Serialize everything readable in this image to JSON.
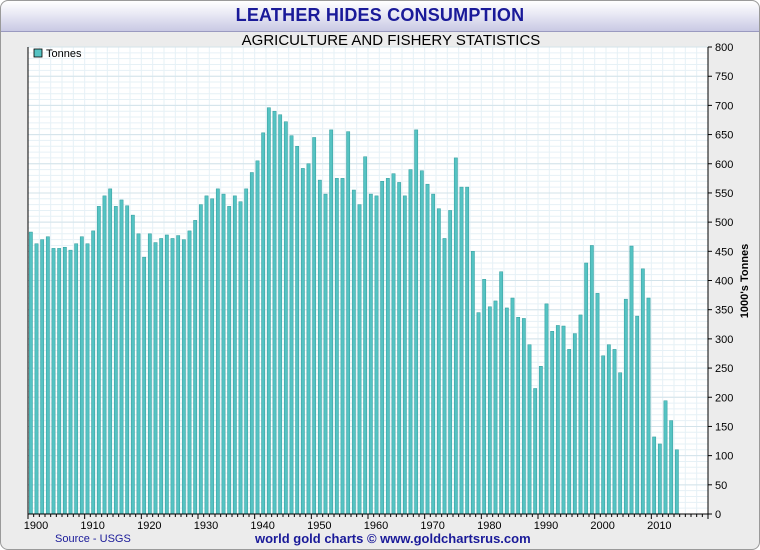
{
  "chart_data": {
    "type": "bar",
    "title": "LEATHER HIDES CONSUMPTION",
    "subtitle": "AGRICULTURE AND FISHERY STATISTICS",
    "ylabel": "1000's Tonnes",
    "ylim": [
      0,
      800
    ],
    "yticks": [
      0,
      50,
      100,
      150,
      200,
      250,
      300,
      350,
      400,
      450,
      500,
      550,
      600,
      650,
      700,
      750,
      800
    ],
    "xticks": [
      1900,
      1910,
      1920,
      1930,
      1940,
      1950,
      1960,
      1970,
      1980,
      1990,
      2000,
      2010
    ],
    "grid": true,
    "legend_position": "top-left",
    "series": [
      {
        "name": "Tonnes",
        "color": "#55c3c3",
        "x": [
          1900,
          1901,
          1902,
          1903,
          1904,
          1905,
          1906,
          1907,
          1908,
          1909,
          1910,
          1911,
          1912,
          1913,
          1914,
          1915,
          1916,
          1917,
          1918,
          1919,
          1920,
          1921,
          1922,
          1923,
          1924,
          1925,
          1926,
          1927,
          1928,
          1929,
          1930,
          1931,
          1932,
          1933,
          1934,
          1935,
          1936,
          1937,
          1938,
          1939,
          1940,
          1941,
          1942,
          1943,
          1944,
          1945,
          1946,
          1947,
          1948,
          1949,
          1950,
          1951,
          1952,
          1953,
          1954,
          1955,
          1956,
          1957,
          1958,
          1959,
          1960,
          1961,
          1962,
          1963,
          1964,
          1965,
          1966,
          1967,
          1968,
          1969,
          1970,
          1971,
          1972,
          1973,
          1974,
          1975,
          1976,
          1977,
          1978,
          1979,
          1980,
          1981,
          1982,
          1983,
          1984,
          1985,
          1986,
          1987,
          1988,
          1989,
          1990,
          1991,
          1992,
          1993,
          1994,
          1995,
          1996,
          1997,
          1998,
          1999,
          2000,
          2001,
          2002,
          2003,
          2004,
          2005,
          2006,
          2007,
          2008,
          2009,
          2010,
          2011,
          2012,
          2013,
          2014
        ],
        "values": [
          483,
          463,
          470,
          475,
          455,
          455,
          457,
          452,
          463,
          475,
          463,
          485,
          527,
          545,
          557,
          527,
          538,
          528,
          512,
          480,
          440,
          480,
          465,
          472,
          478,
          472,
          477,
          470,
          485,
          503,
          530,
          545,
          540,
          557,
          548,
          527,
          545,
          535,
          557,
          585,
          605,
          653,
          696,
          690,
          684,
          672,
          648,
          630,
          592,
          600,
          645,
          572,
          548,
          658,
          575,
          575,
          655,
          555,
          530,
          612,
          548,
          545,
          570,
          575,
          583,
          568,
          545,
          590,
          658,
          588,
          565,
          548,
          523,
          472,
          520,
          610,
          560,
          560,
          450,
          345,
          402,
          355,
          365,
          415,
          353,
          370,
          337,
          335,
          290,
          215,
          253,
          360,
          313,
          323,
          322,
          282,
          309,
          341,
          430,
          460,
          378,
          271,
          290,
          282,
          242,
          368,
          459,
          339,
          420,
          370,
          132,
          120,
          194,
          160,
          110
        ]
      }
    ]
  },
  "footer": {
    "source": "Source - USGS",
    "credit": "world gold charts © www.goldchartsrus.com"
  }
}
